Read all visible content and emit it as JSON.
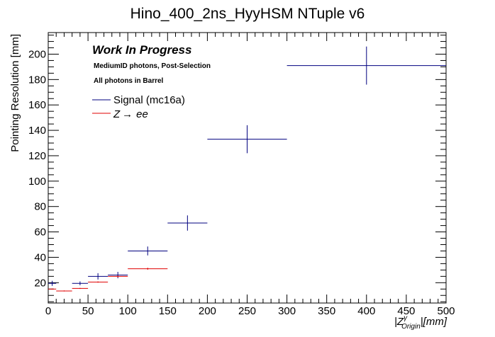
{
  "chart_data": {
    "type": "scatter",
    "title": "Hino_400_2ns_HyyHSM NTuple v6",
    "xlabel": {
      "prefix": "|",
      "var": "Z",
      "sup": "γ",
      "sub": "Origin",
      "suffix": "|[mm]"
    },
    "ylabel": "Pointing Resolution [mm]",
    "xlim": [
      0,
      500
    ],
    "ylim": [
      4,
      217
    ],
    "x_ticks": [
      0,
      50,
      100,
      150,
      200,
      250,
      300,
      350,
      400,
      450,
      500
    ],
    "y_ticks": [
      20,
      40,
      60,
      80,
      100,
      120,
      140,
      160,
      180,
      200
    ],
    "annotations": {
      "work_in_progress": "Work In Progress",
      "selection": "MediumID photons, Post-Selection",
      "region": "All photons in Barrel"
    },
    "legend": {
      "position": "top-left",
      "entries": [
        {
          "label": "Signal (mc16a)",
          "color": "#00007f"
        },
        {
          "label_main": "Z",
          "label_arrow": "→",
          "label_rest": "ee",
          "color": "#e00000"
        }
      ]
    },
    "series": [
      {
        "name": "Signal (mc16a)",
        "color": "#00007f",
        "points": [
          {
            "x": 5,
            "xerr": 5,
            "y": 19.5,
            "yerr": 2.0
          },
          {
            "x": 40,
            "xerr": 10,
            "y": 19.5,
            "yerr": 1.5
          },
          {
            "x": 62.5,
            "xerr": 12.5,
            "y": 25,
            "yerr": 2.5
          },
          {
            "x": 87.5,
            "xerr": 12.5,
            "y": 26,
            "yerr": 2.5
          },
          {
            "x": 125,
            "xerr": 25,
            "y": 45,
            "yerr": 3.5
          },
          {
            "x": 175,
            "xerr": 25,
            "y": 67,
            "yerr": 6
          },
          {
            "x": 250,
            "xerr": 50,
            "y": 133,
            "yerr": 11
          },
          {
            "x": 400,
            "xerr": 100,
            "y": 191,
            "yerr": 15
          }
        ]
      },
      {
        "name": "Z→ee",
        "color": "#e00000",
        "points": [
          {
            "x": 5,
            "xerr": 5,
            "y": 15,
            "yerr": 0.4
          },
          {
            "x": 20,
            "xerr": 10,
            "y": 13.5,
            "yerr": 0.4
          },
          {
            "x": 40,
            "xerr": 10,
            "y": 15.5,
            "yerr": 0.4
          },
          {
            "x": 62.5,
            "xerr": 12.5,
            "y": 20.5,
            "yerr": 0.5
          },
          {
            "x": 87.5,
            "xerr": 12.5,
            "y": 25,
            "yerr": 0.6
          },
          {
            "x": 125,
            "xerr": 25,
            "y": 31,
            "yerr": 0.8
          }
        ]
      }
    ]
  }
}
